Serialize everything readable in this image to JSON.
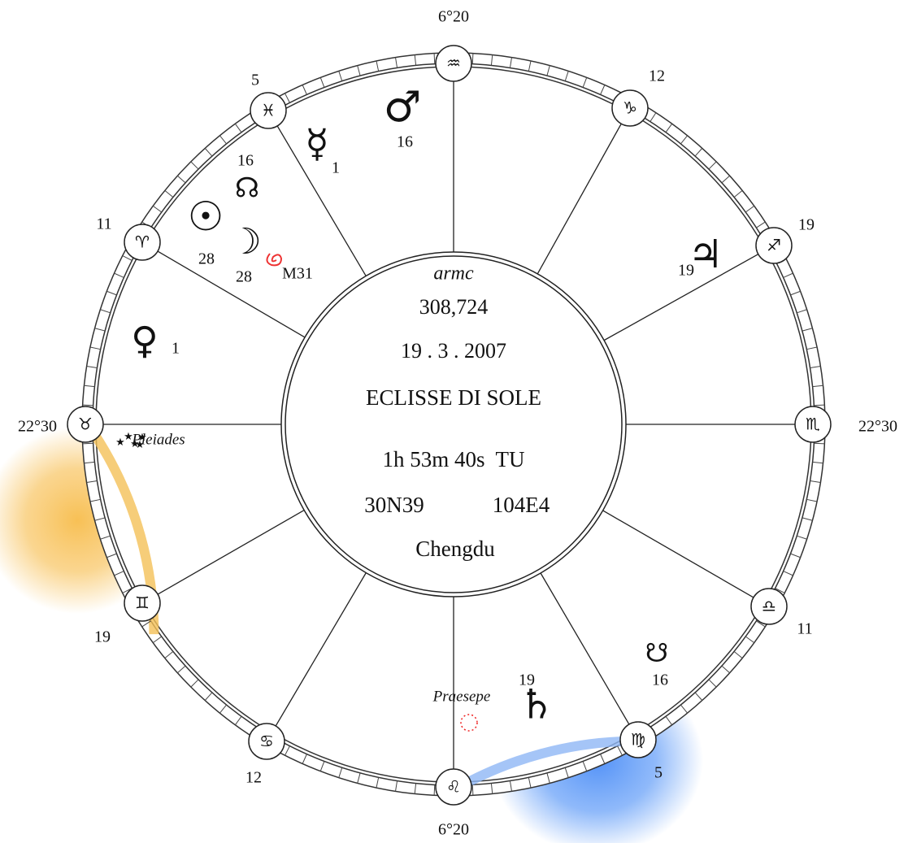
{
  "center": {
    "label": "armc",
    "armc": "308,724",
    "date": "19 . 3 . 2007",
    "event": "ECLISSE DI SOLE",
    "time": "1h 53m 40s  TU",
    "lat": "30N39",
    "lon": "104E4",
    "place": "Chengdu"
  },
  "houses": [
    {
      "sign": "♒",
      "degree": "6°20"
    },
    {
      "sign": "♑",
      "degree": "12"
    },
    {
      "sign": "♐",
      "degree": "19"
    },
    {
      "sign": "♏",
      "degree": "22°30"
    },
    {
      "sign": "♎",
      "degree": "11"
    },
    {
      "sign": "♍",
      "degree": "5"
    },
    {
      "sign": "♌",
      "degree": "6°20"
    },
    {
      "sign": "♋",
      "degree": "12"
    },
    {
      "sign": "♊",
      "degree": "19"
    },
    {
      "sign": "♉",
      "degree": "22°30"
    },
    {
      "sign": "♈",
      "degree": "11"
    },
    {
      "sign": "♓",
      "degree": "5"
    }
  ],
  "bodies": [
    {
      "glyph": "♂",
      "degree": "16"
    },
    {
      "glyph": "☿",
      "degree": "1"
    },
    {
      "glyph": "☊",
      "degree": "16"
    },
    {
      "glyph": "☉",
      "degree": "28"
    },
    {
      "glyph": "☽",
      "degree": "28"
    },
    {
      "glyph": "♃",
      "degree": "19"
    },
    {
      "glyph": "♀",
      "degree": "1"
    },
    {
      "glyph": "♄",
      "degree": "19"
    },
    {
      "glyph": "☋",
      "degree": "16"
    }
  ],
  "stars": [
    {
      "name": "M31"
    },
    {
      "name": "Pleiades"
    },
    {
      "name": "Praesepe"
    }
  ]
}
